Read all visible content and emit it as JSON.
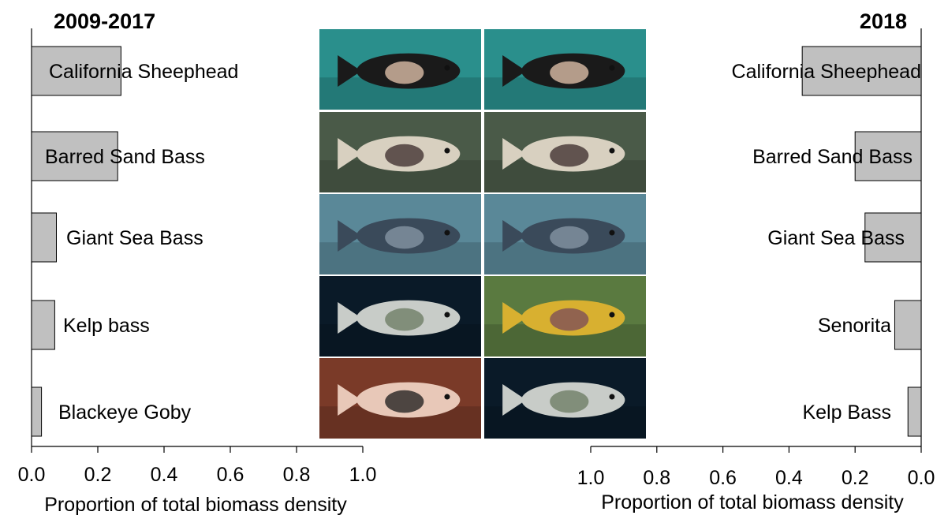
{
  "chart_data": [
    {
      "type": "bar",
      "orientation": "horizontal",
      "title": "2009-2017",
      "xlabel": "Proportion of total biomass density",
      "xlim": [
        0,
        1
      ],
      "xticks": [
        "0.0",
        "0.2",
        "0.4",
        "0.6",
        "0.8",
        "1.0"
      ],
      "categories": [
        "California Sheephead",
        "Barred Sand Bass",
        "Giant Sea Bass",
        "Kelp bass",
        "Blackeye Goby"
      ],
      "values": [
        0.27,
        0.26,
        0.075,
        0.07,
        0.03
      ],
      "bar_color": "#c0c0c0",
      "direction": "left-to-right"
    },
    {
      "type": "bar",
      "orientation": "horizontal",
      "title": "2018",
      "xlabel": "Proportion of total biomass density",
      "xlim": [
        0,
        1
      ],
      "xticks": [
        "1.0",
        "0.8",
        "0.6",
        "0.4",
        "0.2",
        "0.0"
      ],
      "categories": [
        "California Sheephead",
        "Barred Sand Bass",
        "Giant Sea Bass",
        "Senorita",
        "Kelp Bass"
      ],
      "values": [
        0.36,
        0.2,
        0.17,
        0.08,
        0.04
      ],
      "bar_color": "#c0c0c0",
      "direction": "right-to-left"
    }
  ],
  "photos": {
    "left": [
      {
        "name": "california-sheephead-photo-icon",
        "bg": "#2a8f8c",
        "fish": "#1a1a1a",
        "accent": "#e8c8b0"
      },
      {
        "name": "barred-sand-bass-photo-icon",
        "bg": "#4a5a48",
        "fish": "#d8d0c0",
        "accent": "#3a2a2a"
      },
      {
        "name": "giant-sea-bass-photo-icon",
        "bg": "#5a8898",
        "fish": "#3a4a5a",
        "accent": "#8a9aa8"
      },
      {
        "name": "kelp-bass-photo-icon",
        "bg": "#0a1a28",
        "fish": "#c8ccc8",
        "accent": "#6a7a60"
      },
      {
        "name": "blackeye-goby-photo-icon",
        "bg": "#7a3a28",
        "fish": "#e8c8b8",
        "accent": "#1a1a1a"
      }
    ],
    "right": [
      {
        "name": "california-sheephead-photo-icon",
        "bg": "#2a8f8c",
        "fish": "#1a1a1a",
        "accent": "#e8c8b0"
      },
      {
        "name": "barred-sand-bass-photo-icon",
        "bg": "#4a5a48",
        "fish": "#d8d0c0",
        "accent": "#3a2a2a"
      },
      {
        "name": "giant-sea-bass-photo-icon",
        "bg": "#5a8898",
        "fish": "#3a4a5a",
        "accent": "#8a9aa8"
      },
      {
        "name": "senorita-photo-icon",
        "bg": "#5a7a40",
        "fish": "#d8b030",
        "accent": "#7a4a5a"
      },
      {
        "name": "kelp-bass-photo-icon",
        "bg": "#0a1a28",
        "fish": "#c8ccc8",
        "accent": "#6a7a60"
      }
    ]
  }
}
